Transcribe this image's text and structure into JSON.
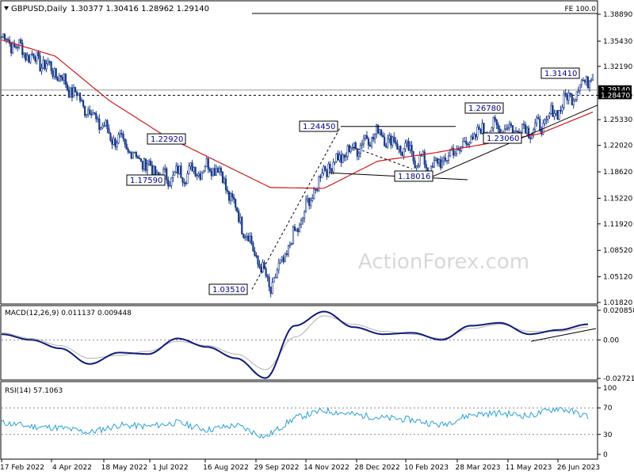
{
  "chart_data": [
    {
      "type": "line",
      "panel": "price",
      "header": {
        "symbol": "GBPUSD,Daily",
        "ohlc": "1.30377 1.30416 1.28962 1.29140"
      },
      "fib_label": "FE 100.0",
      "y_ticks": [
        "1.38890",
        "1.35430",
        "1.32190",
        "1.28470",
        "1.25330",
        "1.22020",
        "1.18620",
        "1.15220",
        "1.11920",
        "1.08520",
        "1.05120",
        "1.01820"
      ],
      "ylim": [
        1.0182,
        1.3889
      ],
      "price_marker": "1.29140",
      "support_marker": "1.28470",
      "series": [
        {
          "name": "Close",
          "x": [
            "17 Feb 2022",
            "4 Apr 2022",
            "18 May 2022",
            "1 Jul 2022",
            "16 Aug 2022",
            "29 Sep 2022",
            "14 Nov 2022",
            "28 Dec 2022",
            "10 Feb 2023",
            "28 Mar 2023",
            "11 May 2023",
            "26 Jun 2023"
          ],
          "values": [
            1.36,
            1.315,
            1.235,
            1.178,
            1.195,
            1.0351,
            1.19,
            1.238,
            1.1902,
            1.242,
            1.242,
            1.3141
          ]
        },
        {
          "name": "",
          "x": [
            "17 Feb 2022",
            "4 Apr 2022",
            "18 May 2022",
            "1 Jul 2022",
            "16 Aug 2022",
            "29 Sep 2022",
            "14 Nov 2022",
            "28 Dec 2022",
            "10 Feb 2023",
            "28 Mar 2023",
            "11 May 2023",
            "26 Jun 2023"
          ],
          "values": [
            1.356,
            1.335,
            1.278,
            1.234,
            1.2,
            1.166,
            1.165,
            1.2,
            1.21,
            1.222,
            1.235,
            1.263
          ]
        }
      ],
      "annotations": [
        {
          "label": "1.31410",
          "x": "26 Jun 2023",
          "y": 1.3141
        },
        {
          "label": "1.26780",
          "x": "28 Mar 2023",
          "y": 1.2678
        },
        {
          "label": "1.24450",
          "x": "14 Nov 2022",
          "y": 1.2445
        },
        {
          "label": "1.22920",
          "x": "18 May 2022",
          "y": 1.2292
        },
        {
          "label": "1.23060",
          "x": "11 May 2023",
          "y": 1.2306
        },
        {
          "label": "1.17590",
          "x": "18 May 2022",
          "y": 1.1759
        },
        {
          "label": "1.18016",
          "x": "10 Feb 2023",
          "y": 1.1802
        },
        {
          "label": "1.03510",
          "x": "29 Sep 2022",
          "y": 1.0351
        }
      ]
    },
    {
      "type": "line",
      "panel": "macd",
      "header": "MACD(12,26,9) 0.011137 0.009448",
      "y_ticks": [
        "0.020858",
        "0.00",
        "-0.027213"
      ],
      "ylim": [
        -0.027213,
        0.020858
      ],
      "series": [
        {
          "name": "",
          "values": [
            0.004,
            0.0,
            -0.006,
            -0.017,
            -0.009,
            -0.01,
            0.001,
            -0.005,
            -0.013,
            -0.027,
            0.01,
            0.02,
            0.009,
            0.004,
            0.005,
            0.0,
            0.01,
            0.012,
            0.004,
            0.007,
            0.011
          ]
        },
        {
          "name": "",
          "values": [
            0.005,
            0.001,
            -0.004,
            -0.013,
            -0.011,
            -0.008,
            -0.001,
            -0.004,
            -0.01,
            -0.021,
            0.002,
            0.017,
            0.011,
            0.006,
            0.004,
            0.001,
            0.008,
            0.011,
            0.006,
            0.006,
            0.009
          ]
        }
      ]
    },
    {
      "type": "line",
      "panel": "rsi",
      "header": "RSI(14) 57.1063",
      "y_ticks": [
        "100",
        "70",
        "30",
        "0"
      ],
      "ylim": [
        0,
        100
      ],
      "series": [
        {
          "name": "",
          "values": [
            48,
            42,
            40,
            33,
            44,
            42,
            48,
            37,
            44,
            26,
            55,
            66,
            60,
            55,
            52,
            44,
            60,
            62,
            58,
            70,
            57
          ]
        }
      ]
    }
  ],
  "x_ticks": [
    "17 Feb 2022",
    "4 Apr 2022",
    "18 May 2022",
    "1 Jul 2022",
    "16 Aug 2022",
    "29 Sep 2022",
    "14 Nov 2022",
    "28 Dec 2022",
    "10 Feb 2023",
    "28 Mar 2023",
    "11 May 2023",
    "26 Jun 2023"
  ],
  "watermark": "ActionForex.com",
  "colors": {
    "candles": "#1a3a8a",
    "ma": "#d11a1a",
    "macd": "#0e1a7a",
    "signal": "#b0b0b0",
    "rsi": "#2aa0d8",
    "grid": "#555555",
    "price_marker": "#000000"
  }
}
